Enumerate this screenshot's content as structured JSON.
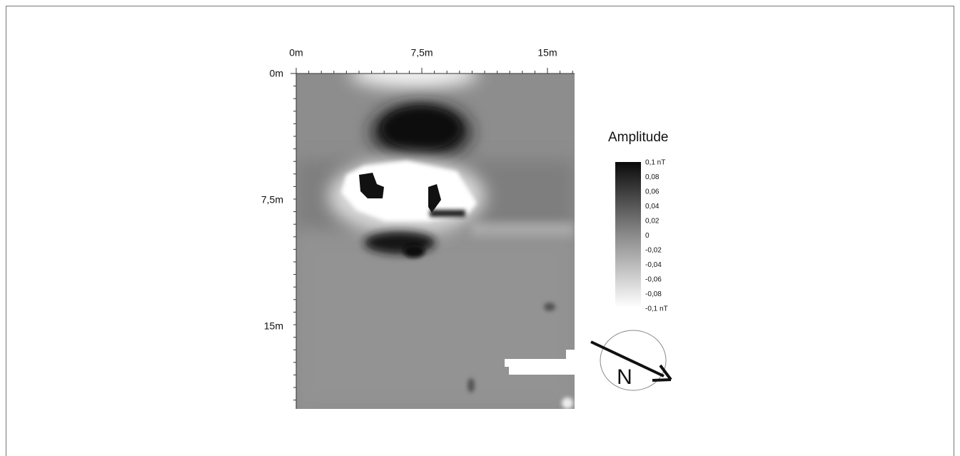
{
  "x_axis": {
    "labels": [
      "0m",
      "7,5m",
      "15m"
    ]
  },
  "y_axis": {
    "labels": [
      "0m",
      "7,5m",
      "15m"
    ]
  },
  "legend": {
    "title": "Amplitude",
    "labels": [
      "0,1 nT",
      "0,08",
      "0,06",
      "0,04",
      "0,02",
      "0",
      "-0,02",
      "-0,04",
      "-0,06",
      "-0,08",
      "-0,1 nT"
    ]
  },
  "compass": {
    "label": "N"
  }
}
